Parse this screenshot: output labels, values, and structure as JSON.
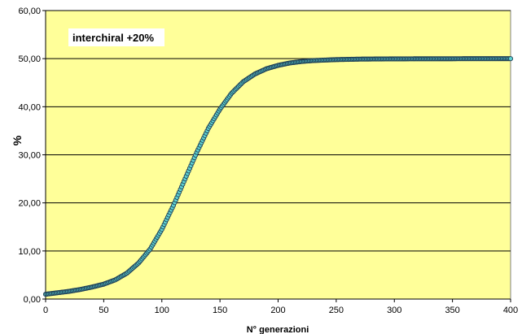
{
  "chart_data": {
    "type": "scatter",
    "title": "",
    "xlabel": "N° generazioni",
    "ylabel": "%",
    "xlim": [
      0,
      400
    ],
    "ylim": [
      0,
      60
    ],
    "x_ticks": [
      0,
      50,
      100,
      150,
      200,
      250,
      300,
      350,
      400
    ],
    "x_tick_labels": [
      "0",
      "50",
      "100",
      "150",
      "200",
      "250",
      "300",
      "350",
      "400"
    ],
    "y_ticks": [
      0,
      10,
      20,
      30,
      40,
      50,
      60
    ],
    "y_tick_labels": [
      "0,00",
      "10,00",
      "20,00",
      "30,00",
      "40,00",
      "50,00",
      "60,00"
    ],
    "grid": "horizontal",
    "legend_position": "top-left",
    "plot_background": "#ffff99",
    "marker_fill": "#5fd3d3",
    "marker_edge": "#1f3f55",
    "series": [
      {
        "name": "interchiral +20%",
        "x": [
          0,
          10,
          20,
          30,
          40,
          50,
          60,
          70,
          80,
          90,
          100,
          110,
          120,
          130,
          140,
          150,
          160,
          170,
          180,
          190,
          200,
          210,
          220,
          230,
          240,
          250,
          260,
          270,
          280,
          290,
          300,
          310,
          320,
          330,
          340,
          350,
          360,
          370,
          380,
          390,
          400
        ],
        "y": [
          1.0,
          1.3,
          1.6,
          2.0,
          2.5,
          3.1,
          4.0,
          5.4,
          7.5,
          10.4,
          14.5,
          19.5,
          25.0,
          30.5,
          35.5,
          39.5,
          42.8,
          45.2,
          46.8,
          47.9,
          48.6,
          49.1,
          49.4,
          49.6,
          49.7,
          49.8,
          49.85,
          49.9,
          49.92,
          49.94,
          49.95,
          49.96,
          49.97,
          49.97,
          49.98,
          49.98,
          49.99,
          49.99,
          49.99,
          50.0,
          50.0
        ]
      }
    ]
  }
}
